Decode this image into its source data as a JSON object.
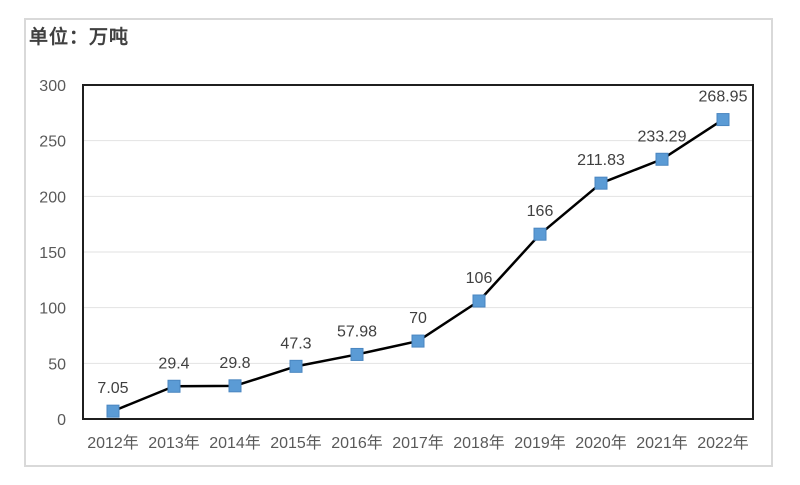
{
  "unit_label": "单位：万吨",
  "colors": {
    "marker_fill": "#5B9BD5",
    "marker_edge": "#4A86C0",
    "line": "#000000",
    "grid": "#e2e2e2",
    "plot_border": "#1f1f1f",
    "frame_border": "#d9d9d9",
    "axis_text": "#595959",
    "data_label_text": "#404040"
  },
  "chart_data": {
    "type": "line",
    "title": "单位：万吨",
    "categories": [
      "2012年",
      "2013年",
      "2014年",
      "2015年",
      "2016年",
      "2017年",
      "2018年",
      "2019年",
      "2020年",
      "2021年",
      "2022年"
    ],
    "values": [
      7.05,
      29.4,
      29.8,
      47.3,
      57.98,
      70,
      106,
      166,
      211.83,
      233.29,
      268.95
    ],
    "data_labels": [
      "7.05",
      "29.4",
      "29.8",
      "47.3",
      "57.98",
      "70",
      "106",
      "166",
      "211.83",
      "233.29",
      "268.95"
    ],
    "series_name": "",
    "xlabel": "",
    "ylabel": "",
    "ylim": [
      0,
      300
    ],
    "yticks": [
      0,
      50,
      100,
      150,
      200,
      250,
      300
    ],
    "grid": true,
    "legend": "none",
    "marker": "square"
  }
}
